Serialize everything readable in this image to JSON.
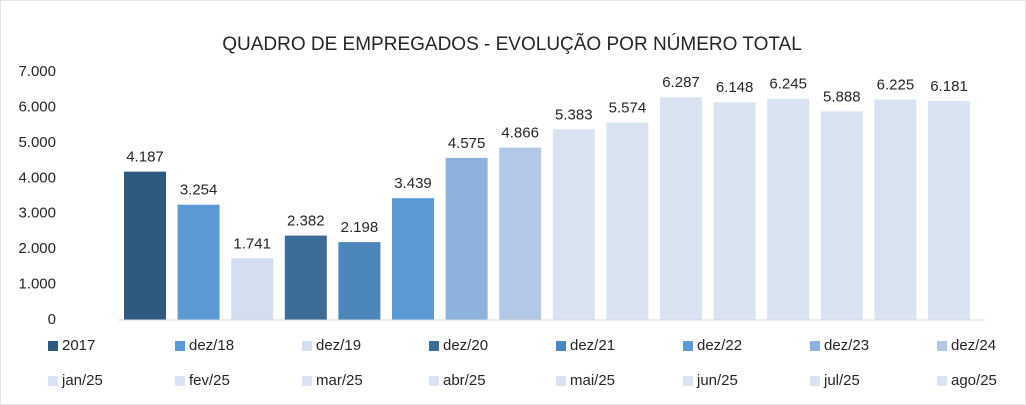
{
  "chart_data": {
    "type": "bar",
    "title": "QUADRO DE EMPREGADOS - EVOLUÇÃO POR NÚMERO TOTAL",
    "categories": [
      "2017",
      "dez/18",
      "dez/19",
      "dez/20",
      "dez/21",
      "dez/22",
      "dez/23",
      "dez/24",
      "jan/25",
      "fev/25",
      "mar/25",
      "abr/25",
      "mai/25",
      "jun/25",
      "jul/25",
      "ago/25"
    ],
    "values": [
      4187,
      3254,
      1741,
      2382,
      2198,
      3439,
      4575,
      4866,
      5383,
      5574,
      6287,
      6148,
      6245,
      5888,
      6225,
      6181
    ],
    "value_labels": [
      "4.187",
      "3.254",
      "1.741",
      "2.382",
      "2.198",
      "3.439",
      "4.575",
      "4.866",
      "5.383",
      "5.574",
      "6.287",
      "6.148",
      "6.245",
      "5.888",
      "6.225",
      "6.181"
    ],
    "colors": [
      "#2f5a80",
      "#5b9bd5",
      "#d3dff0",
      "#3b6c98",
      "#4b86bd",
      "#5b9bd5",
      "#8db2dd",
      "#b3c8e7",
      "#d9e3f2",
      "#d9e3f2",
      "#d9e3f2",
      "#d9e3f2",
      "#d9e3f2",
      "#d9e3f2",
      "#d9e3f2",
      "#d9e3f2"
    ],
    "ylim": [
      0,
      7000
    ],
    "yticks": [
      0,
      {
        "value": 1000,
        "label": "1.000"
      },
      {
        "value": 2000,
        "label": "2.000"
      },
      {
        "value": 3000,
        "label": "3.000"
      },
      {
        "value": 4000,
        "label": "4.000"
      },
      {
        "value": 5000,
        "label": "5.000"
      },
      {
        "value": 6000,
        "label": "6.000"
      },
      {
        "value": 7000,
        "label": "7.000"
      }
    ],
    "grid": false,
    "legend": "bottom"
  }
}
